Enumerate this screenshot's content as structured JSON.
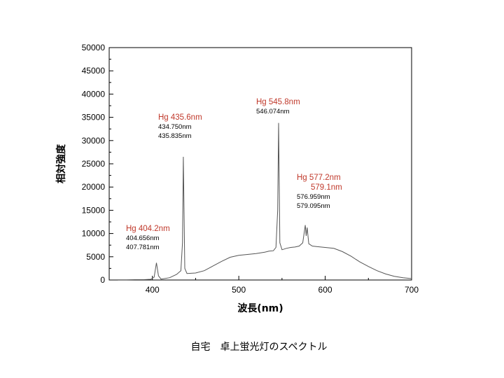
{
  "chart_data": {
    "type": "line",
    "title": "",
    "xlabel": "波長(nm)",
    "ylabel": "相対強度",
    "xlim": [
      350,
      700
    ],
    "ylim": [
      0,
      50000
    ],
    "x_ticks": [
      400,
      500,
      600,
      700
    ],
    "y_ticks": [
      0,
      5000,
      10000,
      15000,
      20000,
      25000,
      30000,
      35000,
      40000,
      45000,
      50000
    ],
    "grid": false,
    "legend": "none",
    "line_color": "#555555",
    "annotation_color": "#c0392b",
    "series": [
      {
        "x": [
          360,
          370,
          380,
          390,
          398,
          402,
          404.7,
          407,
          410,
          420,
          428,
          433,
          434.8,
          435.8,
          437.5,
          440,
          450,
          460,
          470,
          480,
          490,
          500,
          510,
          520,
          530,
          535,
          540,
          543,
          545,
          546.1,
          547.5,
          550,
          555,
          560,
          565,
          570,
          574,
          576.9,
          578,
          579.1,
          581,
          585,
          590,
          600,
          610,
          620,
          630,
          640,
          650,
          660,
          670,
          680,
          690,
          700
        ],
        "y": [
          50,
          50,
          80,
          80,
          150,
          600,
          3700,
          900,
          200,
          500,
          1200,
          2000,
          8000,
          26500,
          2500,
          1400,
          1500,
          2000,
          3000,
          4000,
          4900,
          5300,
          5500,
          5700,
          6000,
          6200,
          6300,
          7000,
          15000,
          33800,
          8000,
          6500,
          6800,
          7000,
          7100,
          7300,
          8000,
          11800,
          9500,
          11300,
          7800,
          7300,
          7200,
          7000,
          6800,
          6100,
          5100,
          3900,
          2900,
          2000,
          1300,
          800,
          500,
          300
        ]
      }
    ],
    "annotations": [
      {
        "title": "Hg 404.2nm",
        "lines": [
          "404.656nm",
          "407.781nm"
        ],
        "x": 404.2
      },
      {
        "title": "Hg 435.6nm",
        "lines": [
          "434.750nm",
          "435.835nm"
        ],
        "x": 435.6
      },
      {
        "title": "Hg 545.8nm",
        "lines": [
          "546.074nm"
        ],
        "x": 545.8
      },
      {
        "title": "Hg 577.2nm",
        "title2": "579.1nm",
        "lines": [
          "576.959nm",
          "579.095nm"
        ],
        "x": 577.2
      }
    ]
  },
  "caption": "自宅　卓上蛍光灯のスペクトル"
}
